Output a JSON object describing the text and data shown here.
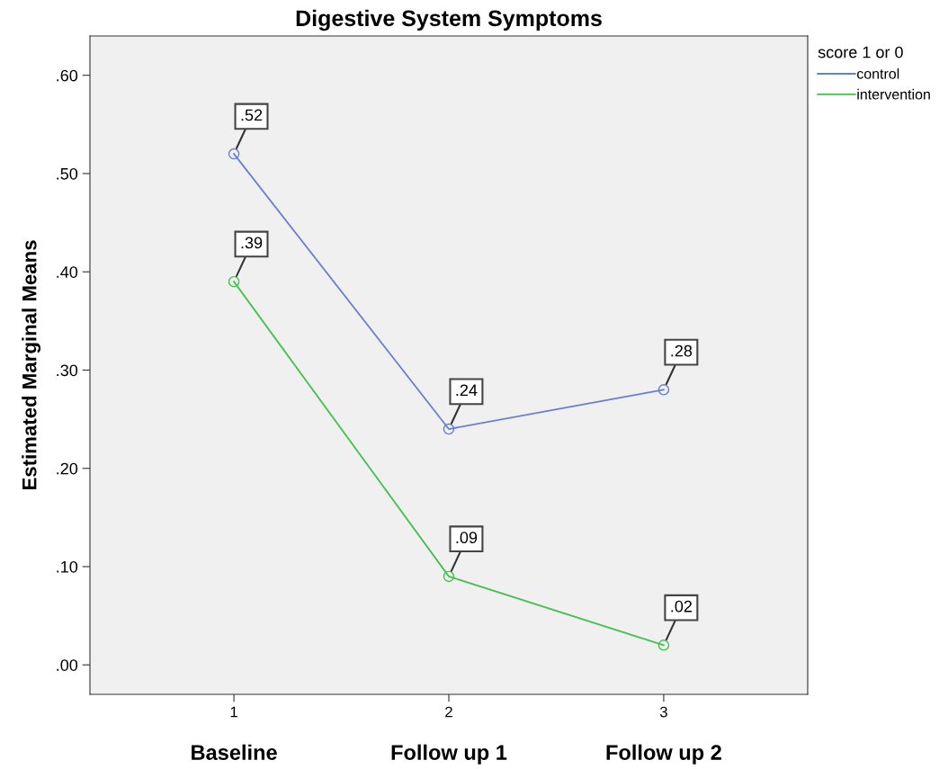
{
  "chart_data": {
    "type": "line",
    "title": "Digestive System Symptoms",
    "ylabel": "Estimated Marginal Means",
    "legend_title": "score 1 or 0",
    "x": [
      1,
      2,
      3
    ],
    "series": [
      {
        "name": "control",
        "color": "#6a7ed0",
        "values": [
          0.52,
          0.24,
          0.28
        ],
        "value_labels": [
          ".52",
          ".24",
          ".28"
        ]
      },
      {
        "name": "intervention",
        "color": "#45c04f",
        "values": [
          0.39,
          0.09,
          0.02
        ],
        "value_labels": [
          ".39",
          ".09",
          ".02"
        ]
      }
    ],
    "xlim": [
      0.33,
      3.67
    ],
    "xticks": [
      1,
      2,
      3
    ],
    "ylim": [
      -0.03,
      0.64
    ],
    "yticks": [
      {
        "value": 0.0,
        "label": ".00"
      },
      {
        "value": 0.1,
        "label": ".10"
      },
      {
        "value": 0.2,
        "label": ".20"
      },
      {
        "value": 0.3,
        "label": ".30"
      },
      {
        "value": 0.4,
        "label": ".40"
      },
      {
        "value": 0.5,
        "label": ".50"
      },
      {
        "value": 0.6,
        "label": ".60"
      }
    ],
    "annotations": [
      "Baseline",
      "Follow up 1",
      "Follow up 2"
    ],
    "marker": "circle",
    "line_style": "solid",
    "grid": false,
    "legend": "top right"
  }
}
